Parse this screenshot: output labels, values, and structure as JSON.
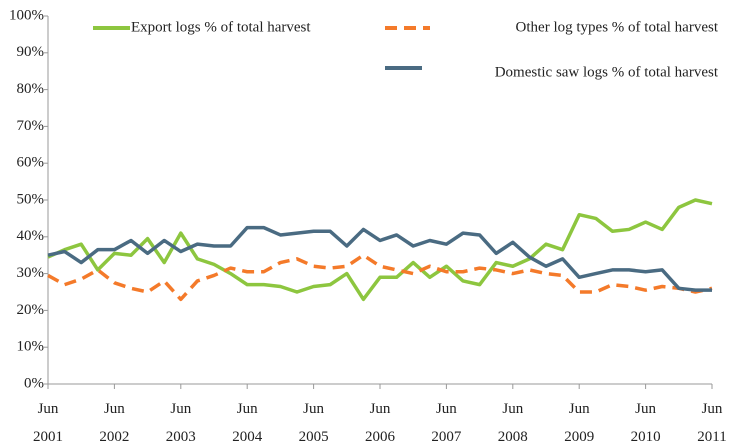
{
  "chart_data": {
    "type": "line",
    "categories": [
      "Jun 2001",
      null,
      null,
      null,
      "Jun 2002",
      null,
      null,
      null,
      "Jun 2003",
      null,
      null,
      null,
      "Jun 2004",
      null,
      null,
      null,
      "Jun 2005",
      null,
      null,
      null,
      "Jun 2006",
      null,
      null,
      null,
      "Jun 2007",
      null,
      null,
      null,
      "Jun 2008",
      null,
      null,
      null,
      "Jun 2009",
      null,
      null,
      null,
      "Jun 2010",
      null,
      null,
      null,
      "Jun 2011"
    ],
    "series": [
      {
        "name": "Export logs % of total harvest",
        "color": "#8dc63f",
        "dashed": false,
        "values": [
          34.5,
          36.5,
          38,
          31,
          35.5,
          35,
          39.5,
          33,
          41,
          34,
          32.5,
          30,
          27,
          27,
          26.5,
          25,
          26.5,
          27,
          30,
          23,
          29,
          29,
          33,
          29,
          32,
          28,
          27,
          33,
          32,
          34,
          38,
          36.5,
          46,
          45,
          41.5,
          42,
          44,
          42,
          48,
          50,
          49
        ]
      },
      {
        "name": "Other log types % of total harvest",
        "color": "#f47a2a",
        "dashed": true,
        "values": [
          29.5,
          27,
          28.5,
          31,
          27.5,
          26,
          25,
          28,
          23,
          28,
          29.5,
          31.5,
          30.5,
          30.5,
          33,
          34,
          32,
          31.5,
          32,
          35,
          32,
          31,
          30,
          32,
          30.5,
          30.5,
          31.5,
          31,
          30,
          31,
          30,
          29.5,
          25,
          25,
          27,
          26.5,
          25.5,
          26.5,
          26,
          25,
          26
        ]
      },
      {
        "name": "Domestic saw logs % of total harvest",
        "color": "#4a6b82",
        "dashed": false,
        "values": [
          35,
          36,
          33,
          36.5,
          36.5,
          39,
          35.5,
          39,
          36,
          38,
          37.5,
          37.5,
          42.5,
          42.5,
          40.5,
          41,
          41.5,
          41.5,
          37.5,
          42,
          39,
          40.5,
          37.5,
          39,
          38,
          41,
          40.5,
          35.5,
          38.5,
          34.5,
          32,
          34,
          29,
          30,
          31,
          31,
          30.5,
          31,
          26,
          25.5,
          25.5
        ]
      }
    ],
    "ylim": [
      0,
      100
    ],
    "yticks": [
      {
        "value": 0,
        "label": "0%"
      },
      {
        "value": 10,
        "label": "10%"
      },
      {
        "value": 20,
        "label": "20%"
      },
      {
        "value": 30,
        "label": "30%"
      },
      {
        "value": 40,
        "label": "40%"
      },
      {
        "value": 50,
        "label": "50%"
      },
      {
        "value": 60,
        "label": "60%"
      },
      {
        "value": 70,
        "label": "70%"
      },
      {
        "value": 80,
        "label": "80%"
      },
      {
        "value": 90,
        "label": "90%"
      },
      {
        "value": 100,
        "label": "100%"
      }
    ],
    "grid": false
  }
}
